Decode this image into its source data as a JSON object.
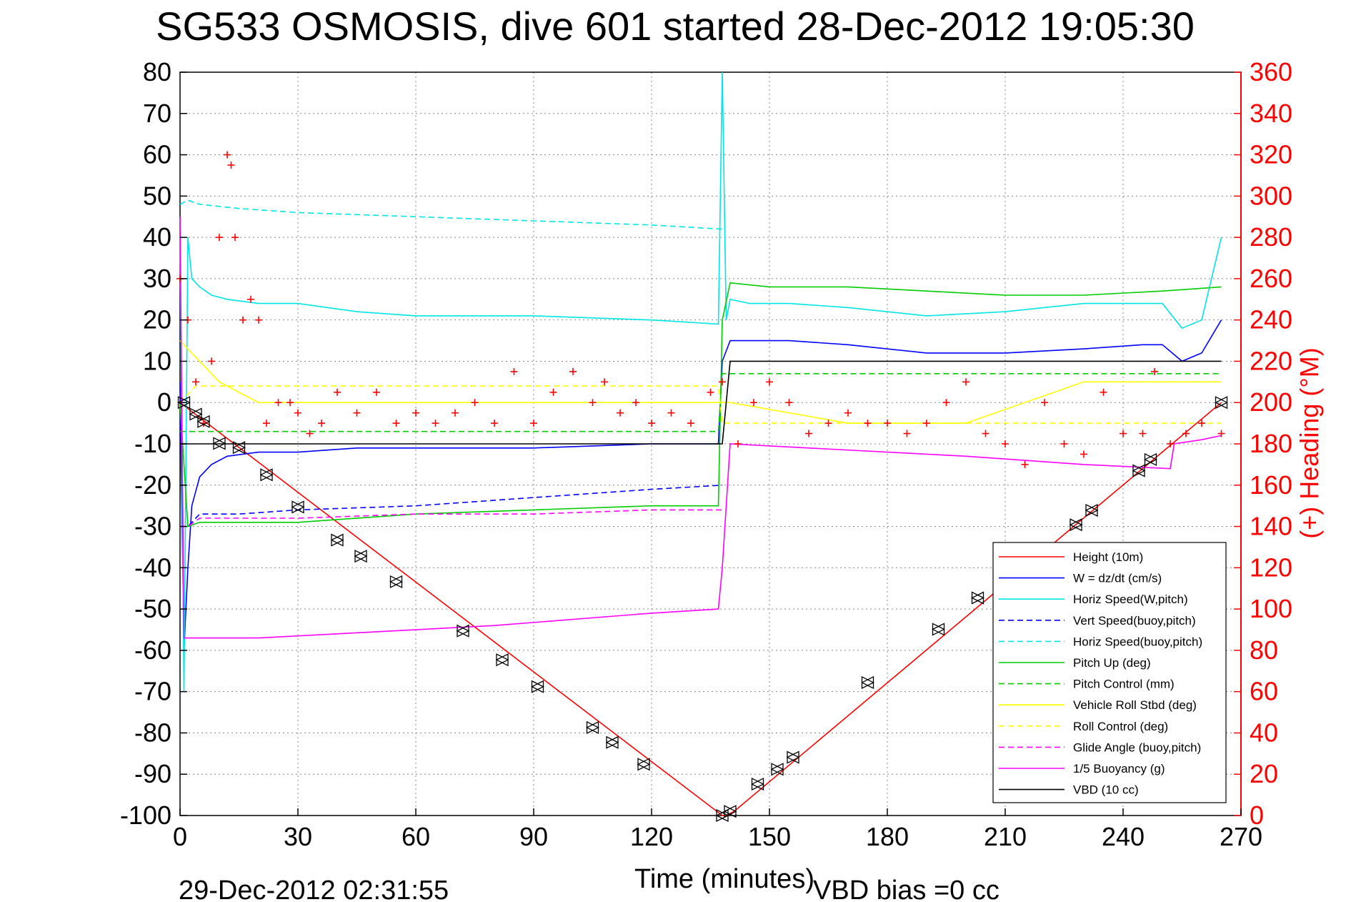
{
  "chart_data": {
    "type": "line",
    "title": "SG533 OSMOSIS, dive 601 started 28-Dec-2012 19:05:30",
    "xlabel": "Time (minutes)",
    "ylabel_right": "(+) Heading (°M)",
    "xlim": [
      0,
      270
    ],
    "ylim": [
      -100,
      80
    ],
    "ylim_right": [
      0,
      360
    ],
    "x_ticks": [
      0,
      30,
      60,
      90,
      120,
      150,
      180,
      210,
      240,
      270
    ],
    "y_ticks": [
      -100,
      -90,
      -80,
      -70,
      -60,
      -50,
      -40,
      -30,
      -20,
      -10,
      0,
      10,
      20,
      30,
      40,
      50,
      60,
      70,
      80
    ],
    "y_ticks_right": [
      0,
      20,
      40,
      60,
      80,
      100,
      120,
      140,
      160,
      180,
      200,
      220,
      240,
      260,
      280,
      300,
      320,
      340,
      360
    ],
    "grid": true,
    "legend_placement": "bottom-right",
    "footer_left": "29-Dec-2012 02:31:55",
    "footer_right": "VBD bias =0 cc",
    "series": [
      {
        "name": "Height (10m)",
        "color": "#ff0000",
        "style": "solid",
        "x": [
          0,
          138,
          139,
          141,
          265
        ],
        "y": [
          0,
          -100,
          -100,
          -99,
          0
        ]
      },
      {
        "name": "W = dz/dt (cm/s)",
        "color": "#0000ff",
        "style": "solid",
        "x": [
          0,
          1,
          2,
          3,
          5,
          8,
          12,
          20,
          30,
          45,
          60,
          90,
          120,
          137,
          138,
          140,
          145,
          155,
          170,
          190,
          210,
          230,
          245,
          250,
          255,
          260,
          265
        ],
        "y": [
          5,
          -60,
          -40,
          -25,
          -18,
          -15,
          -13,
          -12,
          -12,
          -11,
          -11,
          -11,
          -10,
          -10,
          10,
          15,
          15,
          15,
          14,
          12,
          12,
          13,
          14,
          14,
          10,
          12,
          20
        ]
      },
      {
        "name": "Horiz Speed(W,pitch)",
        "color": "#00e5e5",
        "style": "solid",
        "x": [
          0,
          1,
          2,
          3,
          5,
          8,
          12,
          20,
          30,
          45,
          60,
          90,
          120,
          137,
          138,
          139,
          140,
          145,
          155,
          170,
          190,
          210,
          230,
          245,
          250,
          255,
          260,
          265
        ],
        "y": [
          40,
          -70,
          40,
          30,
          28,
          26,
          25,
          24,
          24,
          22,
          21,
          21,
          20,
          19,
          80,
          20,
          25,
          24,
          24,
          23,
          21,
          22,
          24,
          24,
          24,
          18,
          20,
          40
        ]
      },
      {
        "name": "Vert Speed(buoy,pitch)",
        "color": "#0000ff",
        "style": "dashed",
        "x": [
          0,
          2,
          5,
          15,
          30,
          60,
          90,
          120,
          138
        ],
        "y": [
          -30,
          -30,
          -27,
          -27,
          -26,
          -25,
          -23,
          -21,
          -20
        ]
      },
      {
        "name": "Horiz Speed(buoy,pitch)",
        "color": "#00e5e5",
        "style": "dashed",
        "x": [
          0,
          2,
          5,
          15,
          30,
          60,
          90,
          120,
          138
        ],
        "y": [
          48,
          49,
          48,
          47,
          46,
          45,
          44,
          43,
          42
        ]
      },
      {
        "name": "Pitch Up (deg)",
        "color": "#00cc00",
        "style": "solid",
        "x": [
          0,
          2,
          5,
          15,
          30,
          60,
          90,
          120,
          137,
          138,
          140,
          150,
          170,
          190,
          210,
          230,
          250,
          265
        ],
        "y": [
          0,
          -30,
          -29,
          -29,
          -29,
          -27,
          -26,
          -25,
          -25,
          20,
          29,
          28,
          28,
          27,
          26,
          26,
          27,
          28
        ]
      },
      {
        "name": "Pitch Control (mm)",
        "color": "#00cc00",
        "style": "dashed",
        "x": [
          0,
          4,
          137,
          138,
          265
        ],
        "y": [
          -7,
          -7,
          -7,
          7,
          7
        ]
      },
      {
        "name": "Vehicle Roll Stbd (deg)",
        "color": "#ffff00",
        "style": "solid",
        "x": [
          0,
          10,
          20,
          30,
          60,
          90,
          120,
          137,
          140,
          170,
          200,
          230,
          250,
          265
        ],
        "y": [
          15,
          5,
          0,
          0,
          0,
          0,
          0,
          0,
          0,
          -5,
          -5,
          5,
          5,
          5
        ]
      },
      {
        "name": "Roll Control (deg)",
        "color": "#ffff00",
        "style": "dashed",
        "x": [
          0,
          4,
          137,
          138,
          265
        ],
        "y": [
          0,
          4,
          4,
          -5,
          -5
        ]
      },
      {
        "name": "Glide Angle (buoy,pitch)",
        "color": "#ff00ff",
        "style": "dashed",
        "x": [
          0,
          2,
          5,
          15,
          30,
          60,
          90,
          120,
          138
        ],
        "y": [
          -30,
          -30,
          -28,
          -28,
          -28,
          -27,
          -27,
          -26,
          -26
        ]
      },
      {
        "name": "1/5 Buoyancy (g)",
        "color": "#ff00ff",
        "style": "solid",
        "x": [
          0,
          1,
          2,
          20,
          40,
          80,
          120,
          137,
          138,
          140,
          160,
          200,
          230,
          252,
          253,
          260,
          265
        ],
        "y": [
          45,
          -57,
          -57,
          -57,
          -56,
          -54,
          -51,
          -50,
          -40,
          -10,
          -11,
          -13,
          -15,
          -16,
          -10,
          -9,
          -8
        ]
      },
      {
        "name": "VBD (10 cc)",
        "color": "#000000",
        "style": "solid",
        "x": [
          0,
          1,
          138,
          140,
          265
        ],
        "y": [
          -10,
          -10,
          -10,
          10,
          10
        ]
      }
    ],
    "heading": {
      "name": "(+) Heading",
      "color": "#ff0000",
      "marker": "+",
      "x": [
        0,
        2,
        4,
        6,
        8,
        10,
        12,
        13,
        14,
        16,
        18,
        20,
        22,
        25,
        28,
        30,
        33,
        36,
        40,
        45,
        50,
        55,
        60,
        65,
        70,
        75,
        80,
        85,
        90,
        95,
        100,
        105,
        108,
        112,
        116,
        120,
        125,
        130,
        135,
        138,
        142,
        146,
        150,
        155,
        160,
        165,
        170,
        175,
        180,
        185,
        190,
        195,
        200,
        205,
        210,
        215,
        220,
        225,
        230,
        235,
        240,
        245,
        248,
        252,
        256,
        260,
        265
      ],
      "y": [
        260,
        240,
        210,
        190,
        220,
        280,
        320,
        315,
        280,
        240,
        250,
        240,
        190,
        200,
        200,
        195,
        185,
        190,
        205,
        195,
        205,
        190,
        195,
        190,
        195,
        200,
        190,
        215,
        190,
        205,
        215,
        200,
        210,
        195,
        200,
        190,
        195,
        190,
        205,
        210,
        180,
        200,
        210,
        200,
        185,
        190,
        195,
        190,
        190,
        185,
        190,
        200,
        210,
        185,
        180,
        170,
        200,
        180,
        175,
        205,
        185,
        185,
        215,
        180,
        185,
        190,
        185
      ]
    },
    "markers": {
      "name": "depth markers",
      "color": "#000000",
      "x": [
        1,
        4,
        6,
        10,
        15,
        22,
        30,
        40,
        46,
        55,
        72,
        82,
        91,
        105,
        110,
        118,
        138,
        140,
        147,
        152,
        156,
        175,
        193,
        203,
        228,
        232,
        244,
        247,
        265
      ],
      "y": [
        0,
        -2.8,
        -4.6,
        -9.9,
        -10.9,
        -17.5,
        -25.3,
        -33.3,
        -37.2,
        -43.4,
        -55.3,
        -62.3,
        -68.8,
        -78.7,
        -82.3,
        -87.6,
        -100,
        -99,
        -92.4,
        -88.8,
        -85.9,
        -67.8,
        -54.9,
        -47.3,
        -29.6,
        -26.1,
        -16.5,
        -13.8,
        0
      ]
    }
  },
  "legend": {
    "items": [
      {
        "label": "Height (10m)",
        "color": "#ff0000",
        "style": "solid"
      },
      {
        "label": "W = dz/dt (cm/s)",
        "color": "#0000ff",
        "style": "solid"
      },
      {
        "label": "Horiz Speed(W,pitch)",
        "color": "#00e5e5",
        "style": "solid"
      },
      {
        "label": "Vert Speed(buoy,pitch)",
        "color": "#0000ff",
        "style": "dashed"
      },
      {
        "label": "Horiz Speed(buoy,pitch)",
        "color": "#00e5e5",
        "style": "dashed"
      },
      {
        "label": "Pitch Up (deg)",
        "color": "#00cc00",
        "style": "solid"
      },
      {
        "label": "Pitch Control (mm)",
        "color": "#00cc00",
        "style": "dashed"
      },
      {
        "label": "Vehicle Roll Stbd (deg)",
        "color": "#ffff00",
        "style": "solid"
      },
      {
        "label": "Roll Control (deg)",
        "color": "#ffff00",
        "style": "dashed"
      },
      {
        "label": "Glide Angle (buoy,pitch)",
        "color": "#ff00ff",
        "style": "dashed"
      },
      {
        "label": "1/5 Buoyancy (g)",
        "color": "#ff00ff",
        "style": "solid"
      },
      {
        "label": "VBD (10 cc)",
        "color": "#000000",
        "style": "solid"
      }
    ]
  }
}
